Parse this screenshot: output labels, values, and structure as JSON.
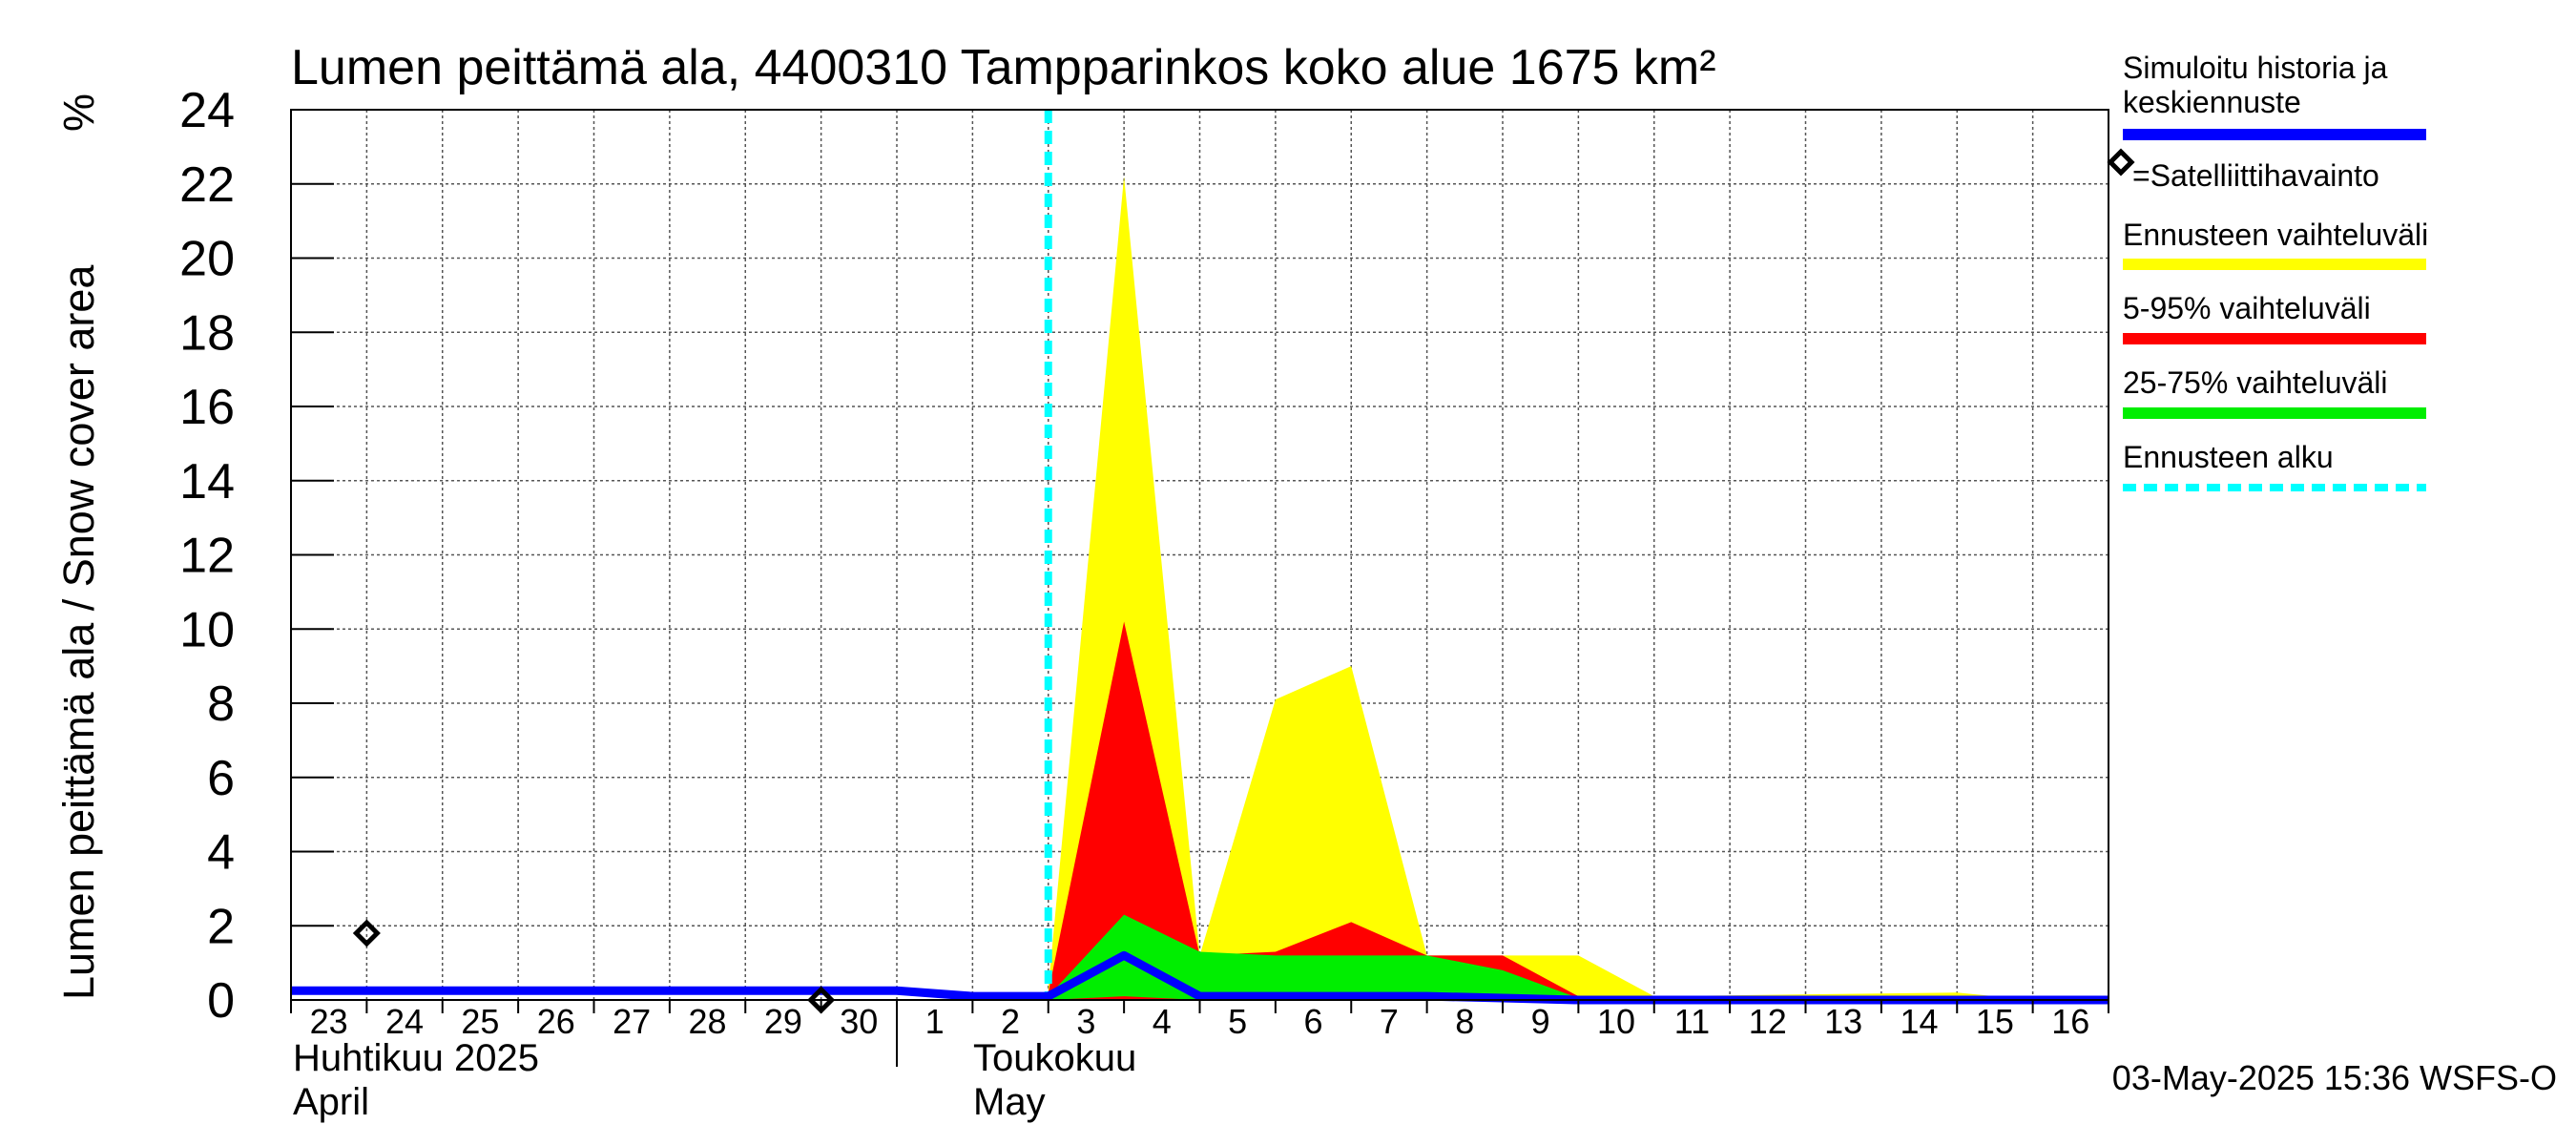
{
  "chart_data": {
    "type": "area",
    "title": "Lumen peittämä ala, 4400310 Tampparinkos koko alue 1675 km²",
    "ylabel": "Lumen peittämä ala / Snow cover area",
    "yunit": "%",
    "ylim": [
      0,
      24
    ],
    "yticks": [
      0,
      2,
      4,
      6,
      8,
      10,
      12,
      14,
      16,
      18,
      20,
      22,
      24
    ],
    "xlim": [
      "2025-04-23",
      "2025-05-17"
    ],
    "xtick_labels": [
      "23",
      "24",
      "25",
      "26",
      "27",
      "28",
      "29",
      "30",
      "1",
      "2",
      "3",
      "4",
      "5",
      "6",
      "7",
      "8",
      "9",
      "10",
      "11",
      "12",
      "13",
      "14",
      "15",
      "16"
    ],
    "month_labels": [
      {
        "fi": "Huhtikuu  2025",
        "en": "April"
      },
      {
        "fi": "Toukokuu",
        "en": "May"
      }
    ],
    "grid": true,
    "legend_position": "right",
    "forecast_start": "2025-05-03",
    "series": [
      {
        "name": "Ennusteen vaihteluväli",
        "color": "#ffff00",
        "kind": "band",
        "x": [
          "2025-05-03",
          "2025-05-04",
          "2025-05-05",
          "2025-05-06",
          "2025-05-07",
          "2025-05-08",
          "2025-05-09",
          "2025-05-10",
          "2025-05-11",
          "2025-05-15",
          "2025-05-16"
        ],
        "upper": [
          0.3,
          22.2,
          1.2,
          8.1,
          9.0,
          1.2,
          1.2,
          1.2,
          0.1,
          0.2,
          0
        ],
        "lower": [
          0,
          0,
          0,
          0,
          0,
          0,
          0,
          0,
          0,
          0,
          0
        ]
      },
      {
        "name": "5-95% vaihteluväli",
        "color": "#ff0000",
        "kind": "band",
        "x": [
          "2025-05-03",
          "2025-05-04",
          "2025-05-05",
          "2025-05-06",
          "2025-05-07",
          "2025-05-08",
          "2025-05-09",
          "2025-05-10"
        ],
        "upper": [
          0.2,
          10.2,
          1.2,
          1.3,
          2.1,
          1.2,
          1.2,
          0.1
        ],
        "lower": [
          0,
          0,
          0,
          0,
          0,
          0,
          0,
          0
        ]
      },
      {
        "name": "25-75% vaihteluväli",
        "color": "#00ee00",
        "kind": "band",
        "x": [
          "2025-05-03",
          "2025-05-04",
          "2025-05-05",
          "2025-05-06",
          "2025-05-07",
          "2025-05-08",
          "2025-05-09",
          "2025-05-10"
        ],
        "upper": [
          0.1,
          2.3,
          1.3,
          1.2,
          1.2,
          1.2,
          0.8,
          0.05
        ],
        "lower": [
          0,
          0.1,
          0,
          0,
          0,
          0,
          0,
          0
        ]
      },
      {
        "name": "Simuloitu historia ja keskiennuste",
        "color": "#0000ff",
        "kind": "line",
        "x": [
          "2025-04-23",
          "2025-05-01",
          "2025-05-02",
          "2025-05-03",
          "2025-05-04",
          "2025-05-05",
          "2025-05-06",
          "2025-05-07",
          "2025-05-08",
          "2025-05-09",
          "2025-05-10",
          "2025-05-17"
        ],
        "y": [
          0.25,
          0.25,
          0.1,
          0.1,
          1.2,
          0.1,
          0.1,
          0.1,
          0.1,
          0.05,
          0,
          0
        ]
      },
      {
        "name": "=Satelliittihavainto",
        "color": "#000000",
        "kind": "scatter",
        "x": [
          "2025-04-24",
          "2025-04-30"
        ],
        "y": [
          1.8,
          0
        ]
      }
    ],
    "legend": [
      {
        "label": "Simuloitu historia ja\nkeskiennuste",
        "color": "#0000ff",
        "style": "line"
      },
      {
        "label": "=Satelliittihavainto",
        "color": "#000000",
        "style": "diamond"
      },
      {
        "label": "Ennusteen vaihteluväli",
        "color": "#ffff00",
        "style": "line"
      },
      {
        "label": "5-95% vaihteluväli",
        "color": "#ff0000",
        "style": "line"
      },
      {
        "label": "25-75% vaihteluväli",
        "color": "#00ee00",
        "style": "line"
      },
      {
        "label": "Ennusteen alku",
        "color": "#00ffff",
        "style": "dashed"
      }
    ],
    "footer": "03-May-2025 15:36 WSFS-O"
  }
}
